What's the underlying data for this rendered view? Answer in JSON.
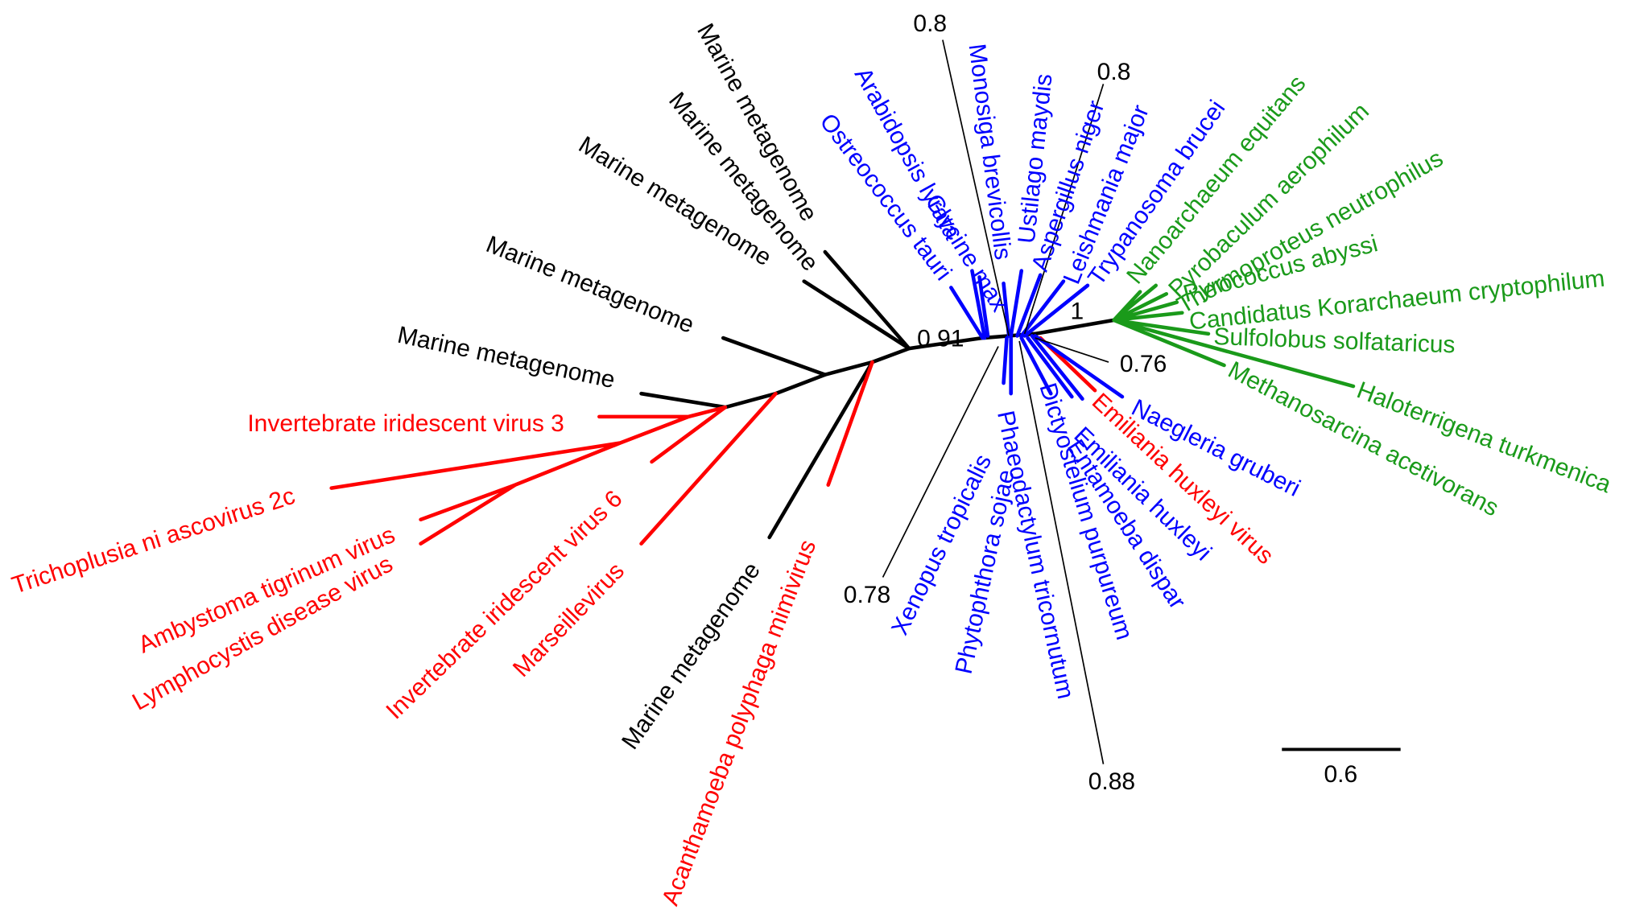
{
  "leaves": [
    "Marine metagenome",
    "Marine metagenome",
    "Marine metagenome",
    "Marine metagenome",
    "Marine metagenome",
    "Marine metagenome",
    "Invertebrate iridescent virus 3",
    "Trichoplusia ni ascovirus 2c",
    "Ambystoma tigrinum virus",
    "Lymphocystis disease virus",
    "Invertebrate iridescent virus 6",
    "Marseillevirus",
    "Acanthamoeba polyphaga mimivirus",
    "Emiliania huxleyi virus",
    "Ostreococcus tauri",
    "Arabidopsis lyrata",
    "Glycine max",
    "Monosiga brevicollis",
    "Ustilago maydis",
    "Aspergillus niger",
    "Leishmania major",
    "Trypanosoma brucei",
    "Nanoarchaeum equitans",
    "Pyrobaculum aerophilum",
    "Thermoproteus neutrophilus",
    "Pyrococcus abyssi",
    "Candidatus Korarchaeum cryptophilum",
    "Sulfolobus solfataricus",
    "Haloterrigena turkmenica",
    "Methanosarcina acetivorans",
    "Naegleria gruberi",
    "Emiliania huxleyi",
    "Entamoeba dispar",
    "Dictyostelium purpureum",
    "Phaeodactylum tricornutum",
    "Phytophthora sojae",
    "Xenopus tropicalis"
  ],
  "support": [
    0.8,
    0.8,
    0.91,
    1,
    0.76,
    0.78,
    0.88
  ],
  "scale_bar": 0.6
}
